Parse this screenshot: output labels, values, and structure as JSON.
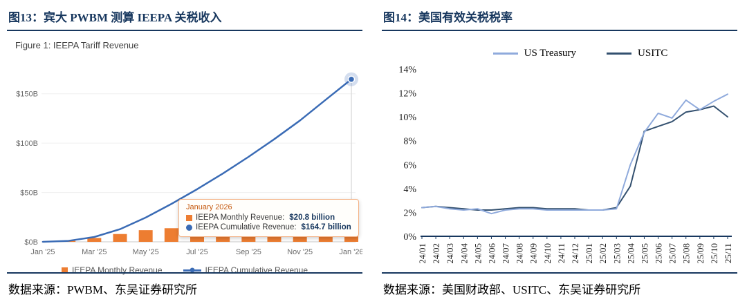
{
  "left_panel": {
    "header": "图13：宾大 PWBM 测算 IEEPA 关税收入",
    "source": "数据来源：PWBM、东吴证券研究所"
  },
  "right_panel": {
    "header": "图14：美国有效关税税率",
    "source": "数据来源：美国财政部、USITC、东吴证券研究所"
  },
  "colors": {
    "accent_navy": "#17375E",
    "monthly_orange": "#ED7D31",
    "cumulative_blue": "#3A6BB5",
    "treasury_light_blue": "#8FAADC",
    "usitc_dark_blue": "#33506F"
  },
  "chart_data": [
    {
      "type": "bar",
      "title": "Figure 1: IEEPA Tariff Revenue",
      "categories": [
        "Jan '25",
        "Feb '25",
        "Mar '25",
        "Apr '25",
        "May '25",
        "Jun '25",
        "Jul '25",
        "Aug '25",
        "Sep '25",
        "Oct '25",
        "Nov '25",
        "Dec '25",
        "Jan '26"
      ],
      "series": [
        {
          "name": "IEEPA Monthly Revenue",
          "kind": "bar",
          "color": "#ED7D31",
          "values": [
            0,
            1.0,
            3.9,
            7.9,
            11.8,
            13.8,
            14.9,
            15.9,
            16.9,
            17.9,
            18.9,
            21.0,
            20.8
          ]
        },
        {
          "name": "IEEPA Cumulative Revenue",
          "kind": "line",
          "color": "#3A6BB5",
          "values": [
            0,
            1.0,
            4.9,
            12.8,
            24.6,
            38.4,
            53.3,
            69.2,
            86.1,
            104.0,
            122.9,
            143.9,
            164.7
          ]
        }
      ],
      "xlabel": "",
      "ylabel": "",
      "ylim": [
        0,
        175
      ],
      "ytick_values": [
        0,
        50,
        100,
        150
      ],
      "yticks": [
        "$0B",
        "$50B",
        "$100B",
        "$150B"
      ],
      "xticks_shown": [
        "Jan '25",
        "Mar '25",
        "May '25",
        "Jul '25",
        "Sep '25",
        "Nov '25",
        "Jan '26"
      ],
      "legend_position": "bottom",
      "grid": false,
      "annotation": {
        "title": "January 2026",
        "rows": [
          {
            "label": "IEEPA Monthly Revenue:",
            "value": "$20.8 billion"
          },
          {
            "label": "IEEPA Cumulative Revenue:",
            "value": "$164.7 billion"
          }
        ]
      }
    },
    {
      "type": "line",
      "title": "美国有效关税税率",
      "categories": [
        "24/01",
        "24/02",
        "24/03",
        "24/04",
        "24/05",
        "24/06",
        "24/07",
        "24/08",
        "24/09",
        "24/10",
        "24/11",
        "24/12",
        "25/01",
        "25/02",
        "25/03",
        "25/04",
        "25/05",
        "25/06",
        "25/07",
        "25/08",
        "25/09",
        "25/10",
        "25/11"
      ],
      "series": [
        {
          "name": "US Treasury",
          "color": "#8FAADC",
          "values": [
            2.4,
            2.5,
            2.3,
            2.2,
            2.3,
            1.9,
            2.2,
            2.3,
            2.3,
            2.2,
            2.2,
            2.2,
            2.2,
            2.2,
            2.3,
            6.0,
            8.7,
            10.3,
            9.9,
            11.4,
            10.6,
            11.3,
            11.9
          ]
        },
        {
          "name": "USITC",
          "color": "#33506F",
          "values": [
            2.4,
            2.5,
            2.4,
            2.3,
            2.2,
            2.2,
            2.3,
            2.4,
            2.4,
            2.3,
            2.3,
            2.3,
            2.2,
            2.2,
            2.4,
            4.2,
            8.8,
            9.2,
            9.6,
            10.4,
            10.6,
            10.9,
            10.0
          ]
        }
      ],
      "xlabel": "",
      "ylabel": "",
      "ylim": [
        0,
        14
      ],
      "ytick_values": [
        0,
        2,
        4,
        6,
        8,
        10,
        12,
        14
      ],
      "yticks": [
        "0%",
        "2%",
        "4%",
        "6%",
        "8%",
        "10%",
        "12%",
        "14%"
      ],
      "legend_position": "top",
      "grid": false
    }
  ]
}
